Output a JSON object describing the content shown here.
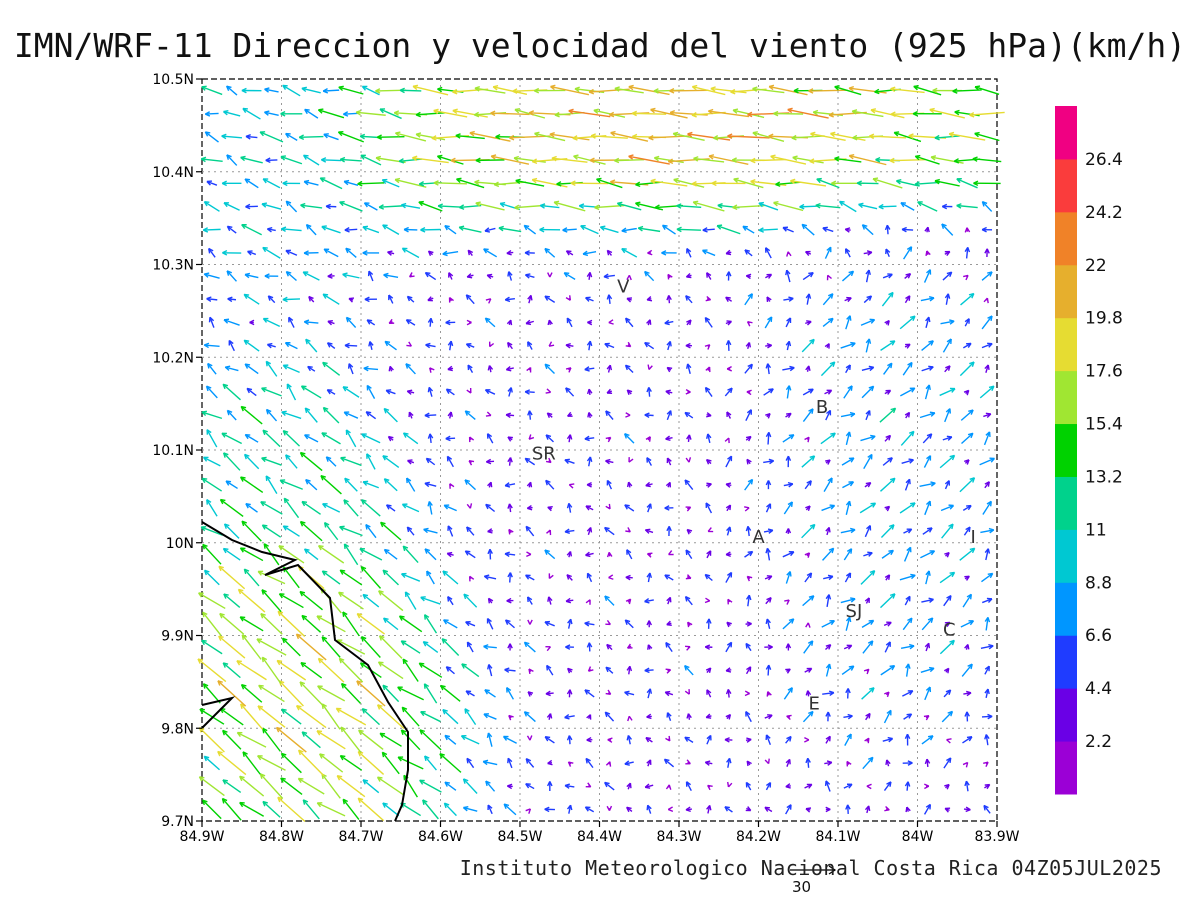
{
  "title": "IMN/WRF-11 Direccion y velocidad del viento (925 hPa)(km/h)",
  "footer": "Instituto Meteorologico Nacional Costa Rica 04Z05JUL2025",
  "reference_vector": {
    "label": "30",
    "speed": 30
  },
  "map": {
    "lon_range": [
      -84.9,
      -83.9
    ],
    "lat_range": [
      9.7,
      10.5
    ],
    "grid": "dotted",
    "x_ticks": [
      "84.9W",
      "84.8W",
      "84.7W",
      "84.6W",
      "84.5W",
      "84.4W",
      "84.3W",
      "84.2W",
      "84.1W",
      "84W",
      "83.9W"
    ],
    "y_ticks": [
      "9.7N",
      "9.8N",
      "9.9N",
      "10N",
      "10.1N",
      "10.2N",
      "10.3N",
      "10.4N",
      "10.5N"
    ],
    "places": [
      {
        "label": "V",
        "lon": -84.37,
        "lat": 10.27
      },
      {
        "label": "B",
        "lon": -84.12,
        "lat": 10.14
      },
      {
        "label": "SR",
        "lon": -84.47,
        "lat": 10.09
      },
      {
        "label": "A",
        "lon": -84.2,
        "lat": 10.0
      },
      {
        "label": "I",
        "lon": -83.93,
        "lat": 10.0
      },
      {
        "label": "SJ",
        "lon": -84.08,
        "lat": 9.92
      },
      {
        "label": "C",
        "lon": -83.96,
        "lat": 9.9
      },
      {
        "label": "E",
        "lon": -84.13,
        "lat": 9.82
      }
    ]
  },
  "colorbar": {
    "labels": [
      "2.2",
      "4.4",
      "6.6",
      "8.8",
      "11",
      "13.2",
      "15.4",
      "17.6",
      "19.8",
      "22",
      "24.2",
      "26.4"
    ],
    "colors": [
      "#9b00d6",
      "#6a00e6",
      "#1f3cff",
      "#0096ff",
      "#00c8d2",
      "#00d28c",
      "#00d200",
      "#a0e632",
      "#e6dc32",
      "#e6af2d",
      "#f08228",
      "#fa3c3c",
      "#f00082"
    ],
    "thresholds": [
      2.2,
      4.4,
      6.6,
      8.8,
      11,
      13.2,
      15.4,
      17.6,
      19.8,
      22,
      24.2,
      26.4
    ]
  },
  "wind_field": {
    "grid_spacing_deg": 0.025,
    "regions": [
      {
        "name": "northern-jet",
        "lon": [
          -84.7,
          -83.9
        ],
        "lat": [
          10.38,
          10.49
        ],
        "u": -22,
        "v": 1.5
      },
      {
        "name": "northwest-flow",
        "lon": [
          -84.9,
          -84.7
        ],
        "lat": [
          10.3,
          10.5
        ],
        "u": -8,
        "v": 3
      },
      {
        "name": "southwest-coast",
        "lon": [
          -84.9,
          -84.62
        ],
        "lat": [
          9.7,
          10.0
        ],
        "u": -14,
        "v": 12
      },
      {
        "name": "southwest-mid",
        "lon": [
          -84.9,
          -84.7
        ],
        "lat": [
          10.0,
          10.15
        ],
        "u": -9,
        "v": 7
      },
      {
        "name": "central-light",
        "lon": [
          -84.6,
          -84.2
        ],
        "lat": [
          9.8,
          10.3
        ],
        "u": -2,
        "v": 2
      },
      {
        "name": "east-northeasterly",
        "lon": [
          -84.2,
          -83.9
        ],
        "lat": [
          9.85,
          10.3
        ],
        "u": 6,
        "v": 5
      }
    ]
  }
}
